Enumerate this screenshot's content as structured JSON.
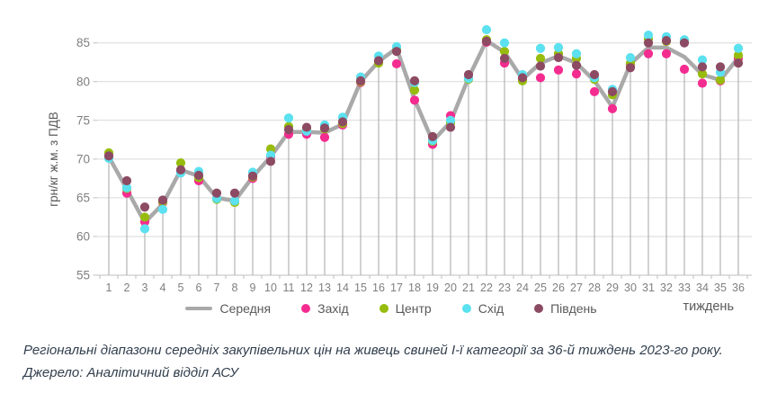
{
  "chart_data": {
    "type": "line",
    "x": [
      1,
      2,
      3,
      4,
      5,
      6,
      7,
      8,
      9,
      10,
      11,
      12,
      13,
      14,
      15,
      16,
      17,
      18,
      19,
      20,
      21,
      22,
      23,
      24,
      25,
      26,
      27,
      28,
      29,
      30,
      31,
      32,
      33,
      34,
      35,
      36
    ],
    "xlabel": "тиждень",
    "ylabel": "грн/кг ж.м. з ПДВ",
    "ylim": [
      55,
      87.5
    ],
    "yticks": [
      55,
      60,
      65,
      70,
      75,
      80,
      85
    ],
    "grid": "horizontal",
    "legend_position": "bottom",
    "drop_lines": true,
    "series": [
      {
        "name": "Середня",
        "marker": "line",
        "color": "#a9a9a9",
        "values": [
          70.3,
          66.1,
          61.8,
          64.2,
          68.6,
          67.8,
          65.0,
          64.6,
          67.7,
          70.3,
          73.5,
          73.5,
          73.4,
          74.5,
          80.0,
          82.6,
          84.3,
          77.7,
          72.3,
          74.8,
          80.5,
          85.3,
          83.8,
          80.3,
          82.4,
          83.3,
          82.4,
          80.1,
          76.7,
          82.3,
          84.4,
          84.4,
          83.2,
          80.9,
          80.2,
          83.1
        ]
      },
      {
        "name": "Захід",
        "marker": "dot",
        "color": "#f42c90",
        "values": [
          70.4,
          65.6,
          61.9,
          64.4,
          68.4,
          67.2,
          64.9,
          64.5,
          67.5,
          70.3,
          73.2,
          73.2,
          72.8,
          74.4,
          79.9,
          82.5,
          82.3,
          77.6,
          71.9,
          75.6,
          80.4,
          85.1,
          82.4,
          80.3,
          80.5,
          81.5,
          81.0,
          78.7,
          76.5,
          82.2,
          83.6,
          83.6,
          81.6,
          79.8,
          80.1,
          83.0
        ]
      },
      {
        "name": "Центр",
        "marker": "dot",
        "color": "#97bc0d",
        "values": [
          70.8,
          66.2,
          62.5,
          64.5,
          69.5,
          67.6,
          64.8,
          64.4,
          67.7,
          71.3,
          74.2,
          73.8,
          73.9,
          74.6,
          80.0,
          82.4,
          84.2,
          78.9,
          72.3,
          74.7,
          80.3,
          85.4,
          83.9,
          80.1,
          83.0,
          83.6,
          83.0,
          80.3,
          78.3,
          82.4,
          85.5,
          85.2,
          85.2,
          81.0,
          80.2,
          83.4
        ]
      },
      {
        "name": "Схід",
        "marker": "dot",
        "color": "#5be1ef",
        "values": [
          70.1,
          66.3,
          61.0,
          63.5,
          68.2,
          68.4,
          64.9,
          64.6,
          68.3,
          70.5,
          75.3,
          73.6,
          74.4,
          75.4,
          80.6,
          83.3,
          84.5,
          79.9,
          72.4,
          75.0,
          80.4,
          86.7,
          85.0,
          80.9,
          84.3,
          84.4,
          83.6,
          80.5,
          79.0,
          83.1,
          86.0,
          85.8,
          85.4,
          82.8,
          81.2,
          84.3
        ]
      },
      {
        "name": "Південь",
        "marker": "dot",
        "color": "#8c4a63",
        "values": [
          70.4,
          67.2,
          63.8,
          64.7,
          68.6,
          67.9,
          65.6,
          65.6,
          67.8,
          69.7,
          73.8,
          74.1,
          74.0,
          74.8,
          80.1,
          82.7,
          83.9,
          80.1,
          72.9,
          74.1,
          80.9,
          85.2,
          83.0,
          80.5,
          82.0,
          83.1,
          82.1,
          80.9,
          78.7,
          81.8,
          85.0,
          85.3,
          85.0,
          81.9,
          81.9,
          82.4
        ]
      }
    ],
    "colors": {
      "gridline": "#d9d9d9",
      "axis": "#bfbfbf",
      "drop_line": "#a6a6a6",
      "tick_label": "#7f7f7f",
      "axis_title": "#595959"
    }
  },
  "caption": {
    "text": "Регіональні діапазони середніх закупівельних цін на живець свиней І-ї категорії за 36-й тиждень 2023-го року.",
    "source": "Джерело: Аналітичний відділ АСУ"
  }
}
